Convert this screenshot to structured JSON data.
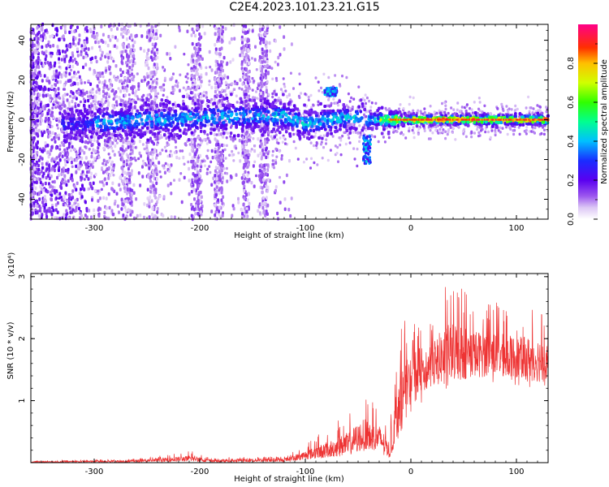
{
  "title": "C2E4.2023.101.23.21.G15",
  "chart_data": [
    {
      "type": "heatmap",
      "xlabel": "Height of straight line (km)",
      "ylabel": "Frequency (Hz)",
      "xlim": [
        -360,
        130
      ],
      "ylim": [
        -50,
        48
      ],
      "xticks": [
        -300,
        -200,
        -100,
        0,
        100
      ],
      "yticks": [
        -40,
        -20,
        0,
        20,
        40
      ],
      "colorbar": {
        "label": "Normalized spectral amplitude",
        "range": [
          0.0,
          1.0
        ],
        "ticks": [
          "0.0",
          "0.2",
          "0.4",
          "0.6",
          "0.8"
        ]
      },
      "band_center_hz": [
        {
          "x": -360,
          "f": -3
        },
        {
          "x": -300,
          "f": -2
        },
        {
          "x": -250,
          "f": 0
        },
        {
          "x": -200,
          "f": 1
        },
        {
          "x": -150,
          "f": 2
        },
        {
          "x": -120,
          "f": 2
        },
        {
          "x": -100,
          "f": -2
        },
        {
          "x": -60,
          "f": 1
        },
        {
          "x": -30,
          "f": 0
        },
        {
          "x": 0,
          "f": 0
        },
        {
          "x": 130,
          "f": 0
        }
      ],
      "features": [
        {
          "x_range": [
            -82,
            -70
          ],
          "f_range": [
            12,
            16
          ],
          "note": "isolated blob"
        },
        {
          "x_range": [
            -45,
            -38
          ],
          "f_range": [
            -22,
            -8
          ],
          "note": "downward tail"
        }
      ]
    },
    {
      "type": "line",
      "xlabel": "Height of straight line (km)",
      "ylabel": "SNR (10 * v/v)",
      "scale_label": "(x10⁴)",
      "xlim": [
        -360,
        130
      ],
      "ylim": [
        0,
        3.05
      ],
      "xticks": [
        -300,
        -200,
        -100,
        0,
        100
      ],
      "yticks": [
        1,
        2,
        3
      ],
      "series": [
        {
          "color": "#ee3333",
          "envelope": [
            {
              "x": -360,
              "lo": 0.0,
              "mid": 0.01,
              "hi": 0.03
            },
            {
              "x": -300,
              "lo": 0.0,
              "mid": 0.02,
              "hi": 0.05
            },
            {
              "x": -250,
              "lo": 0.0,
              "mid": 0.03,
              "hi": 0.08
            },
            {
              "x": -205,
              "lo": 0.02,
              "mid": 0.07,
              "hi": 0.2
            },
            {
              "x": -190,
              "lo": 0.0,
              "mid": 0.03,
              "hi": 0.08
            },
            {
              "x": -150,
              "lo": 0.0,
              "mid": 0.04,
              "hi": 0.1
            },
            {
              "x": -120,
              "lo": 0.0,
              "mid": 0.04,
              "hi": 0.1
            },
            {
              "x": -100,
              "lo": 0.05,
              "mid": 0.12,
              "hi": 0.3
            },
            {
              "x": -80,
              "lo": 0.08,
              "mid": 0.2,
              "hi": 0.55
            },
            {
              "x": -60,
              "lo": 0.12,
              "mid": 0.3,
              "hi": 0.8
            },
            {
              "x": -45,
              "lo": 0.2,
              "mid": 0.45,
              "hi": 1.15
            },
            {
              "x": -30,
              "lo": 0.15,
              "mid": 0.4,
              "hi": 0.9
            },
            {
              "x": -20,
              "lo": 0.05,
              "mid": 0.2,
              "hi": 0.5
            },
            {
              "x": -12,
              "lo": 0.4,
              "mid": 0.9,
              "hi": 2.3
            },
            {
              "x": 0,
              "lo": 0.8,
              "mid": 1.35,
              "hi": 2.3
            },
            {
              "x": 20,
              "lo": 1.1,
              "mid": 1.6,
              "hi": 2.5
            },
            {
              "x": 40,
              "lo": 1.2,
              "mid": 1.8,
              "hi": 3.05
            },
            {
              "x": 60,
              "lo": 1.2,
              "mid": 1.75,
              "hi": 2.6
            },
            {
              "x": 80,
              "lo": 1.3,
              "mid": 1.75,
              "hi": 2.6
            },
            {
              "x": 100,
              "lo": 1.2,
              "mid": 1.7,
              "hi": 2.4
            },
            {
              "x": 130,
              "lo": 1.2,
              "mid": 1.65,
              "hi": 2.6
            }
          ]
        }
      ]
    }
  ]
}
